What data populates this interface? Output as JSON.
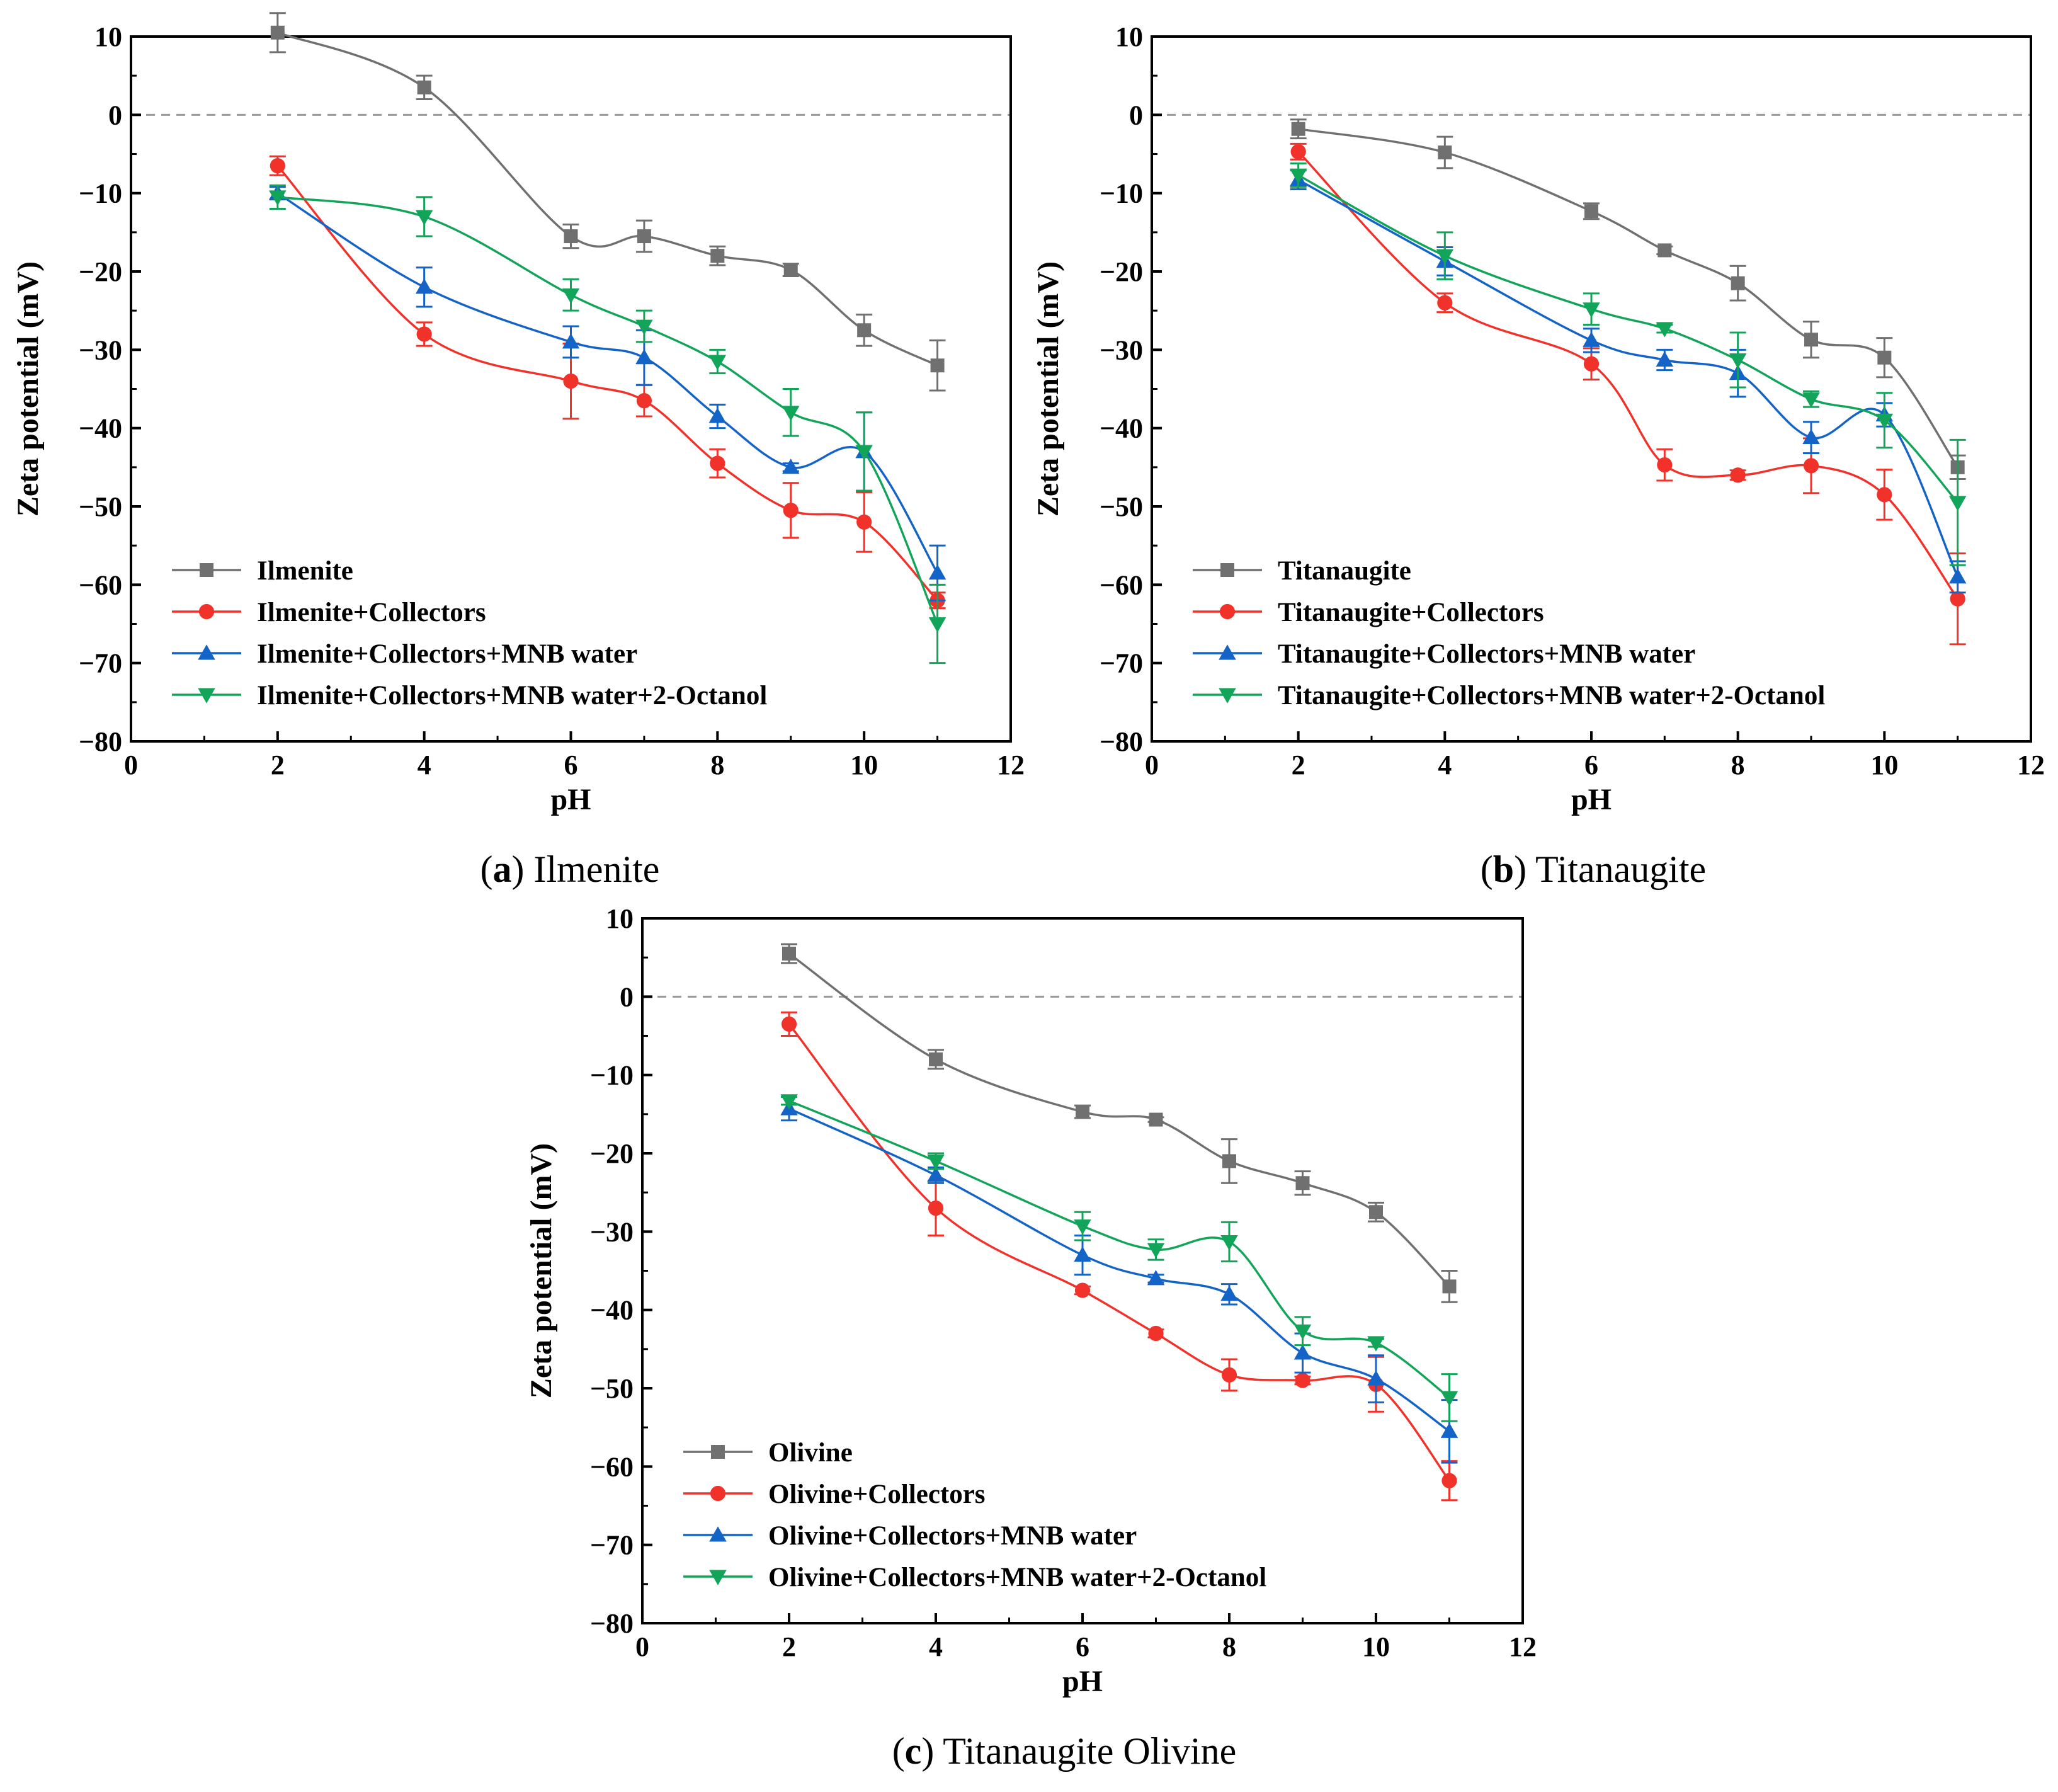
{
  "chart_data": [
    {
      "type": "line",
      "panel": "a",
      "caption_letter": "a",
      "caption_text": "Ilmenite",
      "title": "",
      "xlabel": "pH",
      "ylabel": "Zeta potential (mV)",
      "xlim": [
        0,
        12
      ],
      "ylim": [
        -80,
        10
      ],
      "xticks": [
        0,
        2,
        4,
        6,
        8,
        10,
        12
      ],
      "yticks": [
        10,
        0,
        -10,
        -20,
        -30,
        -40,
        -50,
        -60,
        -70,
        -80
      ],
      "ytick_labels": [
        "10",
        "0",
        "−10",
        "−20",
        "−30",
        "−40",
        "−50",
        "−60",
        "−70",
        "−80"
      ],
      "zero_line": true,
      "legend_position": "bottom-left",
      "x": [
        2,
        4,
        6,
        7,
        8,
        9,
        10,
        11
      ],
      "series": [
        {
          "name": "Ilmenite",
          "color": "#707070",
          "marker": "square",
          "values": [
            10.5,
            3.5,
            -15.5,
            -15.5,
            -18,
            -19.8,
            -27.5,
            -32
          ],
          "errors": [
            2.5,
            1.5,
            1.5,
            2,
            1.2,
            0.8,
            2,
            3.2
          ]
        },
        {
          "name": "Ilmenite+Collectors",
          "color": "#f0322a",
          "marker": "circle",
          "values": [
            -6.5,
            -28,
            -34,
            -36.5,
            -44.5,
            -50.5,
            -52,
            -62
          ],
          "errors": [
            1.2,
            1.5,
            4.8,
            2,
            1.8,
            3.5,
            3.8,
            1
          ]
        },
        {
          "name": "Ilmenite+Collectors+MNB water",
          "color": "#1464c8",
          "marker": "triangle-up",
          "values": [
            -10,
            -22,
            -29,
            -31,
            -38.5,
            -45,
            -43,
            -58.5
          ],
          "errors": [
            0.8,
            2.5,
            2,
            3.5,
            1.5,
            0.5,
            5,
            3.5
          ]
        },
        {
          "name": "Ilmenite+Collectors+MNB water+2-Octanol",
          "color": "#12a55a",
          "marker": "triangle-down",
          "values": [
            -10.5,
            -13,
            -23,
            -27,
            -31.5,
            -38,
            -43,
            -65
          ],
          "errors": [
            1.5,
            2.5,
            2,
            2,
            1.5,
            3,
            5,
            5
          ]
        }
      ]
    },
    {
      "type": "line",
      "panel": "b",
      "caption_letter": "b",
      "caption_text": "Titanaugite",
      "title": "",
      "xlabel": "pH",
      "ylabel": "Zeta potential (mV)",
      "xlim": [
        0,
        12
      ],
      "ylim": [
        -80,
        10
      ],
      "xticks": [
        0,
        2,
        4,
        6,
        8,
        10,
        12
      ],
      "yticks": [
        10,
        0,
        -10,
        -20,
        -30,
        -40,
        -50,
        -60,
        -70,
        -80
      ],
      "ytick_labels": [
        "10",
        "0",
        "−10",
        "−20",
        "−30",
        "−40",
        "−50",
        "−60",
        "−70",
        "−80"
      ],
      "zero_line": true,
      "legend_position": "bottom-left",
      "x": [
        2,
        4,
        6,
        7,
        8,
        9,
        10,
        11
      ],
      "series": [
        {
          "name": "Titanaugite",
          "color": "#707070",
          "marker": "square",
          "values": [
            -1.8,
            -4.8,
            -12.3,
            -17.3,
            -21.5,
            -28.7,
            -31,
            -45
          ],
          "errors": [
            1.2,
            2,
            1,
            0.5,
            2.2,
            2.3,
            2.5,
            1.5
          ]
        },
        {
          "name": "Titanaugite+Collectors",
          "color": "#f0322a",
          "marker": "circle",
          "values": [
            -4.7,
            -24,
            -31.8,
            -44.7,
            -46,
            -44.8,
            -48.5,
            -61.8
          ],
          "errors": [
            1,
            1.2,
            2,
            2,
            0.6,
            3.5,
            3.2,
            5.8
          ]
        },
        {
          "name": "Titanaugite+Collectors+MNB water",
          "color": "#1464c8",
          "marker": "triangle-up",
          "values": [
            -8.3,
            -18.7,
            -28.8,
            -31.3,
            -33,
            -41.2,
            -38.3,
            -59
          ],
          "errors": [
            1.2,
            1.8,
            1.5,
            1.3,
            3,
            2,
            1.5,
            2
          ]
        },
        {
          "name": "Titanaugite+Collectors+MNB water+2-Octanol",
          "color": "#12a55a",
          "marker": "triangle-down",
          "values": [
            -7.7,
            -18,
            -24.8,
            -27.3,
            -31.3,
            -36.3,
            -39,
            -49.5
          ],
          "errors": [
            1.5,
            3,
            2,
            0.5,
            3.5,
            1,
            3.5,
            8
          ]
        }
      ]
    },
    {
      "type": "line",
      "panel": "c",
      "caption_letter": "c",
      "caption_text": "Titanaugite Olivine",
      "title": "",
      "xlabel": "pH",
      "ylabel": "Zeta potential (mV)",
      "xlim": [
        0,
        12
      ],
      "ylim": [
        -80,
        10
      ],
      "xticks": [
        0,
        2,
        4,
        6,
        8,
        10,
        12
      ],
      "yticks": [
        10,
        0,
        -10,
        -20,
        -30,
        -40,
        -50,
        -60,
        -70,
        -80
      ],
      "ytick_labels": [
        "10",
        "0",
        "−10",
        "−20",
        "−30",
        "−40",
        "−50",
        "−60",
        "−70",
        "−80"
      ],
      "zero_line": true,
      "legend_position": "bottom-left",
      "x": [
        2,
        4,
        6,
        7,
        8,
        9,
        10,
        11
      ],
      "series": [
        {
          "name": "Olivine",
          "color": "#707070",
          "marker": "square",
          "values": [
            5.5,
            -8,
            -14.7,
            -15.7,
            -21,
            -23.8,
            -27.5,
            -37
          ],
          "errors": [
            1.2,
            1.2,
            0.8,
            0.3,
            2.8,
            1.5,
            1.2,
            2
          ]
        },
        {
          "name": "Olivine+Collectors",
          "color": "#f0322a",
          "marker": "circle",
          "values": [
            -3.5,
            -27,
            -37.5,
            -43,
            -48.3,
            -49,
            -49.5,
            -61.8
          ],
          "errors": [
            1.5,
            3.5,
            0.5,
            0.5,
            2,
            0.5,
            3.5,
            2.5
          ]
        },
        {
          "name": "Olivine+Collectors+MNB water",
          "color": "#1464c8",
          "marker": "triangle-up",
          "values": [
            -14.3,
            -22.8,
            -33,
            -36,
            -38,
            -45.5,
            -48.8,
            -55.5
          ],
          "errors": [
            1.5,
            1,
            2.5,
            0.5,
            1.3,
            2.5,
            3,
            4
          ]
        },
        {
          "name": "Olivine+Collectors+MNB water+2-Octanol",
          "color": "#12a55a",
          "marker": "triangle-down",
          "values": [
            -13.3,
            -21,
            -29.3,
            -32.3,
            -31.3,
            -42.7,
            -44.2,
            -51.2
          ],
          "errors": [
            0.5,
            1,
            1.8,
            1.3,
            2.5,
            1.8,
            0.5,
            3
          ]
        }
      ]
    }
  ]
}
